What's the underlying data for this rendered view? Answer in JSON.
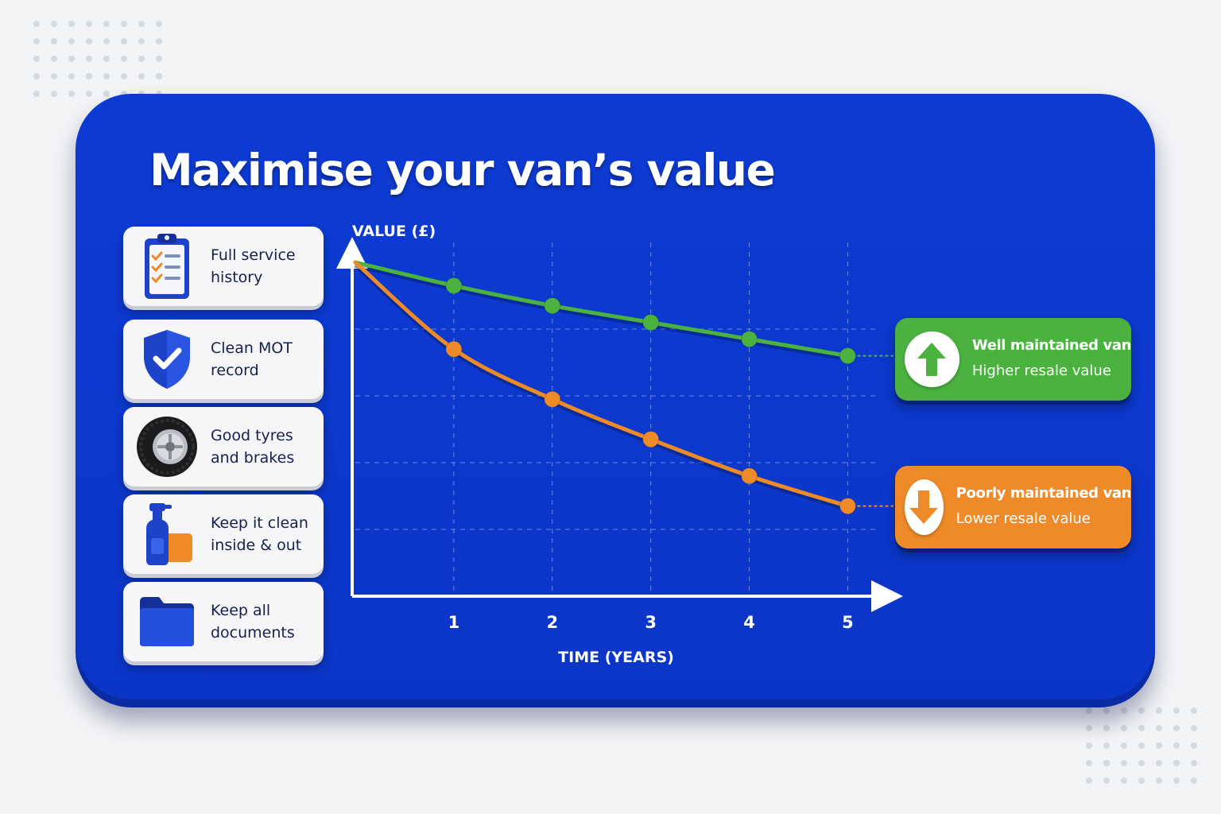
{
  "title": "Maximise your van’s value",
  "tips": [
    {
      "label_1": "Full service",
      "label_2": "history",
      "icon": "clipboard-icon"
    },
    {
      "label_1": "Clean MOT",
      "label_2": "record",
      "icon": "shield-check-icon"
    },
    {
      "label_1": "Good tyres",
      "label_2": "and brakes",
      "icon": "tyre-icon"
    },
    {
      "label_1": "Keep it clean",
      "label_2": "inside & out",
      "icon": "spray-bottle-icon"
    },
    {
      "label_1": "Keep all",
      "label_2": "documents",
      "icon": "folder-icon"
    }
  ],
  "colors": {
    "card": "#0b35c7",
    "well_maintained": "#4bb23f",
    "poorly_maintained": "#ee8a27"
  },
  "legend": {
    "well": {
      "title": "Well maintained van",
      "subtitle": "Higher resale value",
      "icon": "arrow-up-icon"
    },
    "poor": {
      "title": "Poorly maintained van",
      "subtitle": "Lower resale value",
      "icon": "arrow-down-icon"
    }
  },
  "chart_data": {
    "type": "line",
    "title": "",
    "xlabel": "TIME (YEARS)",
    "ylabel": "VALUE (£)",
    "x": [
      0,
      1,
      2,
      3,
      4,
      5
    ],
    "x_tick_labels": [
      "1",
      "2",
      "3",
      "4",
      "5"
    ],
    "y_tick_labels": [],
    "xlim": [
      0,
      5.4
    ],
    "ylim": [
      0,
      100
    ],
    "grid": true,
    "series": [
      {
        "name": "Well maintained van",
        "color": "#4bb23f",
        "values": [
          100,
          93,
          87,
          82,
          77,
          72
        ]
      },
      {
        "name": "Poorly maintained van",
        "color": "#ee8a27",
        "values": [
          100,
          74,
          59,
          47,
          36,
          27
        ]
      }
    ]
  }
}
